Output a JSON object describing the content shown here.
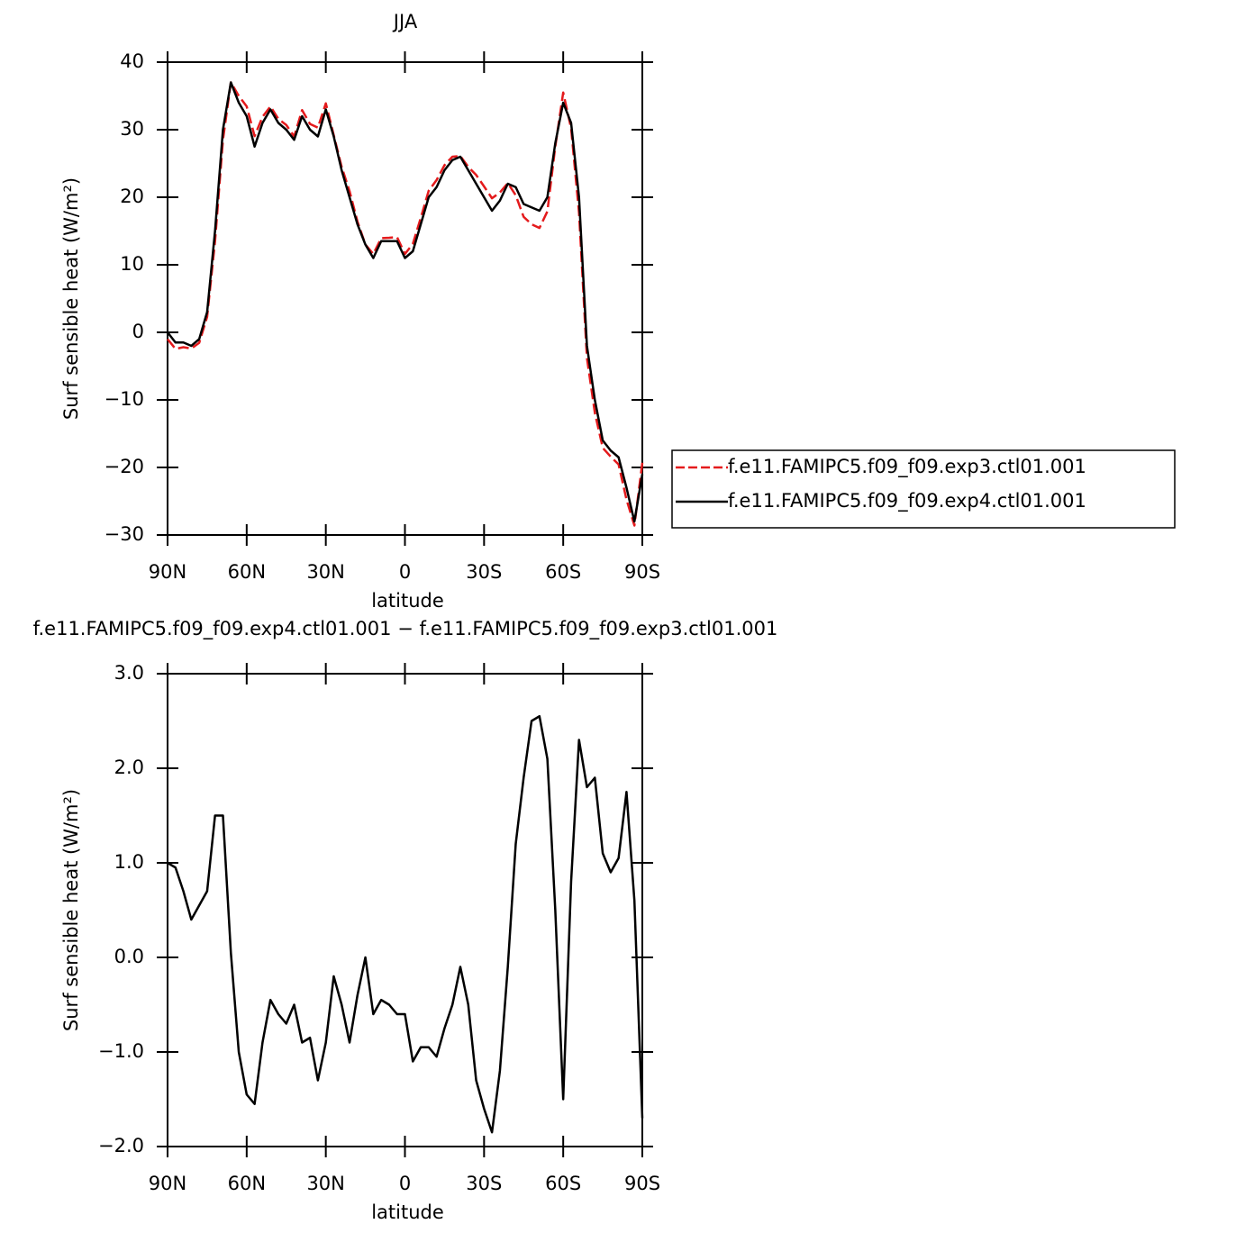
{
  "chart_data": [
    {
      "type": "line",
      "title": "JJA",
      "xlabel": "latitude",
      "ylabel": "Surf sensible heat (W/m²)",
      "x": [
        90,
        87,
        84,
        81,
        78,
        75,
        72,
        69,
        66,
        63,
        60,
        57,
        54,
        51,
        48,
        45,
        42,
        39,
        36,
        33,
        30,
        27,
        24,
        21,
        18,
        15,
        12,
        9,
        6,
        3,
        0,
        -3,
        -6,
        -9,
        -12,
        -15,
        -18,
        -21,
        -24,
        -27,
        -30,
        -33,
        -36,
        -39,
        -42,
        -45,
        -48,
        -51,
        -54,
        -57,
        -60,
        -63,
        -66,
        -69,
        -72,
        -75,
        -78,
        -81,
        -84,
        -87,
        -90
      ],
      "series": [
        {
          "name": "f.e11.FAMIPC5.f09_f09.exp3.ctl01.001",
          "color": "#e41a1c",
          "dash": true,
          "values": [
            -1,
            -2.45,
            -2.2,
            -2.4,
            -1.55,
            2.3,
            13.5,
            28.5,
            37,
            35,
            33.45,
            29.05,
            31.9,
            33.45,
            31.6,
            30.7,
            29,
            32.9,
            30.85,
            30.3,
            33.9,
            29.2,
            24.5,
            20.9,
            16.4,
            13,
            11.6,
            13.95,
            14,
            14.1,
            11.6,
            13.1,
            16.95,
            20.95,
            22.55,
            24.75,
            26,
            26.1,
            24.5,
            23.3,
            21.6,
            19.85,
            20.7,
            22.1,
            20.3,
            17.1,
            16,
            15.45,
            17.9,
            27.5,
            35.5,
            30.2,
            17.7,
            -3.8,
            -11.9,
            -17.1,
            -18.4,
            -19.55,
            -24.75,
            -28.6,
            -19.3
          ]
        },
        {
          "name": "f.e11.FAMIPC5.f09_f09.exp4.ctl01.001",
          "color": "#000000",
          "dash": false,
          "values": [
            0,
            -1.5,
            -1.5,
            -2,
            -1,
            3,
            15,
            30,
            37,
            34,
            32,
            27.5,
            31,
            33,
            31,
            30,
            28.5,
            32,
            30,
            29,
            33,
            29,
            24,
            20,
            16,
            13,
            11,
            13.5,
            13.5,
            13.5,
            11,
            12,
            16,
            20,
            21.5,
            24,
            25.5,
            26,
            24,
            22,
            20,
            18,
            19.5,
            22,
            21.5,
            19,
            18.5,
            18,
            20,
            28,
            34,
            31,
            20,
            -2,
            -10,
            -16,
            -17.5,
            -18.5,
            -23,
            -28,
            -21
          ]
        }
      ],
      "xlim": [
        90,
        -90
      ],
      "xticks": [
        {
          "value": 90,
          "label": "90N"
        },
        {
          "value": 60,
          "label": "60N"
        },
        {
          "value": 30,
          "label": "30N"
        },
        0,
        {
          "value": -30,
          "label": "30S"
        },
        {
          "value": -60,
          "label": "60S"
        },
        {
          "value": -90,
          "label": "90S"
        }
      ],
      "ylim": [
        -30,
        40
      ],
      "yticks": [
        {
          "value": -30,
          "label": "−30"
        },
        {
          "value": -20,
          "label": "−20"
        },
        {
          "value": -10,
          "label": "−10"
        },
        0,
        10,
        20,
        30,
        40
      ],
      "legend": "outside-right"
    },
    {
      "type": "line",
      "title": "f.e11.FAMIPC5.f09_f09.exp4.ctl01.001 − f.e11.FAMIPC5.f09_f09.exp3.ctl01.001",
      "xlabel": "latitude",
      "ylabel": "Surf sensible heat (W/m²)",
      "x": [
        90,
        87,
        84,
        81,
        78,
        75,
        72,
        69,
        66,
        63,
        60,
        57,
        54,
        51,
        48,
        45,
        42,
        39,
        36,
        33,
        30,
        27,
        24,
        21,
        18,
        15,
        12,
        9,
        6,
        3,
        0,
        -3,
        -6,
        -9,
        -12,
        -15,
        -18,
        -21,
        -24,
        -27,
        -30,
        -33,
        -36,
        -39,
        -42,
        -45,
        -48,
        -51,
        -54,
        -57,
        -60,
        -63,
        -66,
        -69,
        -72,
        -75,
        -78,
        -81,
        -84,
        -87,
        -90
      ],
      "series": [
        {
          "color": "#000000",
          "dash": false,
          "values": [
            1,
            0.95,
            0.7,
            0.4,
            0.55,
            0.7,
            1.5,
            1.5,
            0.05,
            -1,
            -1.45,
            -1.55,
            -0.9,
            -0.45,
            -0.6,
            -0.7,
            -0.5,
            -0.9,
            -0.85,
            -1.3,
            -0.9,
            -0.2,
            -0.5,
            -0.9,
            -0.4,
            0,
            -0.6,
            -0.45,
            -0.5,
            -0.6,
            -0.6,
            -1.1,
            -0.95,
            -0.95,
            -1.05,
            -0.75,
            -0.5,
            -0.1,
            -0.5,
            -1.3,
            -1.6,
            -1.85,
            -1.2,
            -0.1,
            1.2,
            1.9,
            2.5,
            2.55,
            2.1,
            0.5,
            -1.5,
            0.8,
            2.3,
            1.8,
            1.9,
            1.1,
            0.9,
            1.05,
            1.75,
            0.6,
            -1.7
          ]
        }
      ],
      "xlim": [
        90,
        -90
      ],
      "xticks": [
        {
          "value": 90,
          "label": "90N"
        },
        {
          "value": 60,
          "label": "60N"
        },
        {
          "value": 30,
          "label": "30N"
        },
        0,
        {
          "value": -30,
          "label": "30S"
        },
        {
          "value": -60,
          "label": "60S"
        },
        {
          "value": -90,
          "label": "90S"
        }
      ],
      "ylim": [
        -2,
        3
      ],
      "yticks": [
        {
          "value": -2,
          "label": "−2.0"
        },
        {
          "value": -1,
          "label": "−1.0"
        },
        {
          "value": 0,
          "label": "0.0"
        },
        {
          "value": 1,
          "label": "1.0"
        },
        {
          "value": 2,
          "label": "2.0"
        },
        {
          "value": 3,
          "label": "3.0"
        }
      ]
    }
  ]
}
